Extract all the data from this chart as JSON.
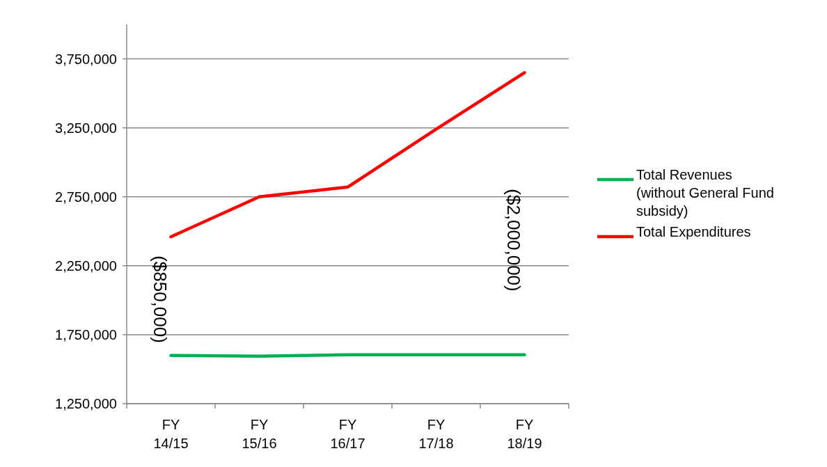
{
  "chart_data": {
    "type": "line",
    "categories": [
      "FY\n14/15",
      "FY\n15/16",
      "FY\n16/17",
      "FY\n17/18",
      "FY\n18/19"
    ],
    "series": [
      {
        "name": "Total Revenues (without General Fund subsidy)",
        "color": "#00b050",
        "values": [
          1600000,
          1595000,
          1605000,
          1605000,
          1605000
        ]
      },
      {
        "name": "Total Expenditures",
        "color": "#ff0000",
        "values": [
          2460000,
          2750000,
          2820000,
          3240000,
          3650000
        ]
      }
    ],
    "ylim": [
      1250000,
      4000000
    ],
    "yticks": [
      {
        "value": 1250000,
        "label": "1,250,000"
      },
      {
        "value": 1750000,
        "label": "1,750,000"
      },
      {
        "value": 2250000,
        "label": "2,250,000"
      },
      {
        "value": 2750000,
        "label": "2,750,000"
      },
      {
        "value": 3250000,
        "label": "3,250,000"
      },
      {
        "value": 3750000,
        "label": "3,750,000"
      }
    ],
    "annotations": [
      "($850,000)",
      "($2,000,000)"
    ],
    "grid": "y",
    "legend": "right",
    "marker": "none",
    "line_style": "solid"
  }
}
